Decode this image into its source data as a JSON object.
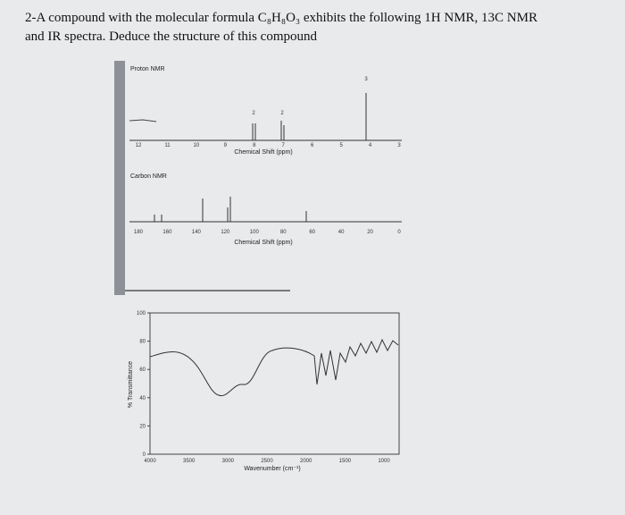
{
  "question": {
    "line1": "2-A compound with the molecular formula C₈H₈O₃ exhibits the following 1H NMR, 13C NMR",
    "line2": "and IR spectra. Deduce the structure of this compound"
  },
  "proton_nmr": {
    "title": "Proton NMR",
    "xticks": [
      12,
      11,
      10,
      9,
      8,
      7,
      6,
      5,
      4,
      3
    ],
    "integrations": [
      "2",
      "2",
      "3"
    ],
    "xlabel": "Chemical Shift (ppm)"
  },
  "carbon_nmr": {
    "title": "Carbon NMR",
    "xticks": [
      180,
      160,
      140,
      120,
      100,
      80,
      60,
      40,
      20,
      0
    ],
    "xlabel": "Chemical Shift (ppm)"
  },
  "ir": {
    "ylabel": "% Transmittance",
    "yticks": [
      100,
      80,
      60,
      40,
      20,
      0
    ],
    "xticks": [
      4000,
      3500,
      3000,
      2500,
      2000,
      1500,
      1000
    ],
    "xlabel": "Wavenumber (cm⁻¹)"
  }
}
